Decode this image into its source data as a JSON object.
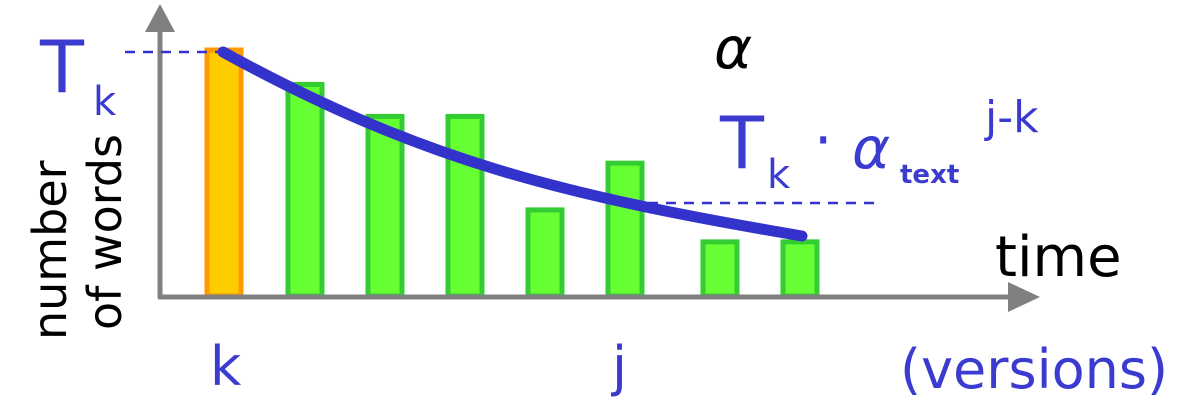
{
  "chart_data": {
    "type": "bar",
    "categories": [
      "k",
      "",
      "",
      "",
      "",
      "j",
      "",
      ""
    ],
    "values": [
      10,
      8.6,
      7.3,
      7.3,
      3.5,
      5.4,
      2.2,
      2.2
    ],
    "highlight_index": 0,
    "ylim": [
      0,
      10
    ],
    "decay_curve": {
      "start": 10,
      "end": 2.6,
      "label_dashed_at_index": 5
    },
    "xlabel": "time",
    "xlabel_sub": "(versions)",
    "ylabel_line1": "number",
    "ylabel_line2": "of words",
    "tk_label": "T",
    "tk_sub": "k",
    "alpha_label": "α",
    "formula": {
      "T": "T",
      "k": "k",
      "dot": "·",
      "alpha": "α",
      "text_sub": "text",
      "exp": "j-k"
    },
    "tick_labels": {
      "k": "k",
      "j": "j"
    },
    "colors": {
      "highlight_fill": "#ffcc00",
      "highlight_stroke": "#ff9900",
      "bar_fill": "#66ff33",
      "bar_stroke": "#33cc33",
      "curve": "#3333cc",
      "dash": "#3333cc",
      "axis": "#808080"
    }
  }
}
